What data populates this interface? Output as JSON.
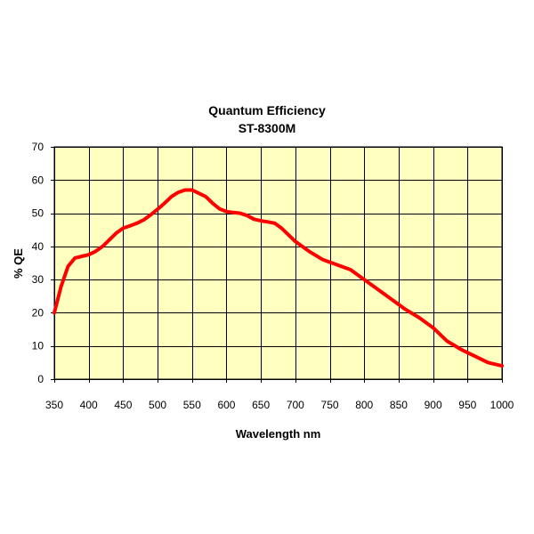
{
  "chart_data": {
    "type": "line",
    "title": "Quantum Efficiency",
    "subtitle": "ST-8300M",
    "xlabel": "Wavelength nm",
    "ylabel": "% QE",
    "xlim": [
      350,
      1000
    ],
    "ylim": [
      0,
      70
    ],
    "x_ticks": [
      350,
      400,
      450,
      500,
      550,
      600,
      650,
      700,
      750,
      800,
      850,
      900,
      950,
      1000
    ],
    "y_ticks": [
      0,
      10,
      20,
      30,
      40,
      50,
      60,
      70
    ],
    "grid": true,
    "legend": "none",
    "colors": {
      "plot_background": "#ffffc0",
      "grid": "#000000",
      "line": "#ff0000"
    },
    "series": [
      {
        "x": [
          350,
          360,
          370,
          380,
          390,
          400,
          410,
          420,
          430,
          440,
          450,
          460,
          470,
          480,
          490,
          500,
          510,
          520,
          530,
          540,
          550,
          560,
          570,
          580,
          590,
          600,
          610,
          620,
          630,
          640,
          650,
          660,
          670,
          680,
          690,
          700,
          720,
          740,
          760,
          780,
          800,
          820,
          840,
          860,
          880,
          900,
          920,
          940,
          960,
          980,
          1000
        ],
        "y": [
          20,
          28,
          34,
          36.5,
          37,
          37.5,
          38.5,
          40,
          42,
          44,
          45.5,
          46.2,
          47,
          48,
          49.5,
          51.2,
          53,
          55,
          56.3,
          57,
          57,
          56,
          55,
          53,
          51.3,
          50.5,
          50.2,
          50,
          49.3,
          48.2,
          47.7,
          47.4,
          47,
          45.5,
          43.5,
          41.5,
          38.5,
          36,
          34.5,
          33,
          30,
          27,
          24,
          21,
          18.5,
          15.5,
          11.5,
          9,
          7,
          5,
          4
        ]
      }
    ]
  }
}
